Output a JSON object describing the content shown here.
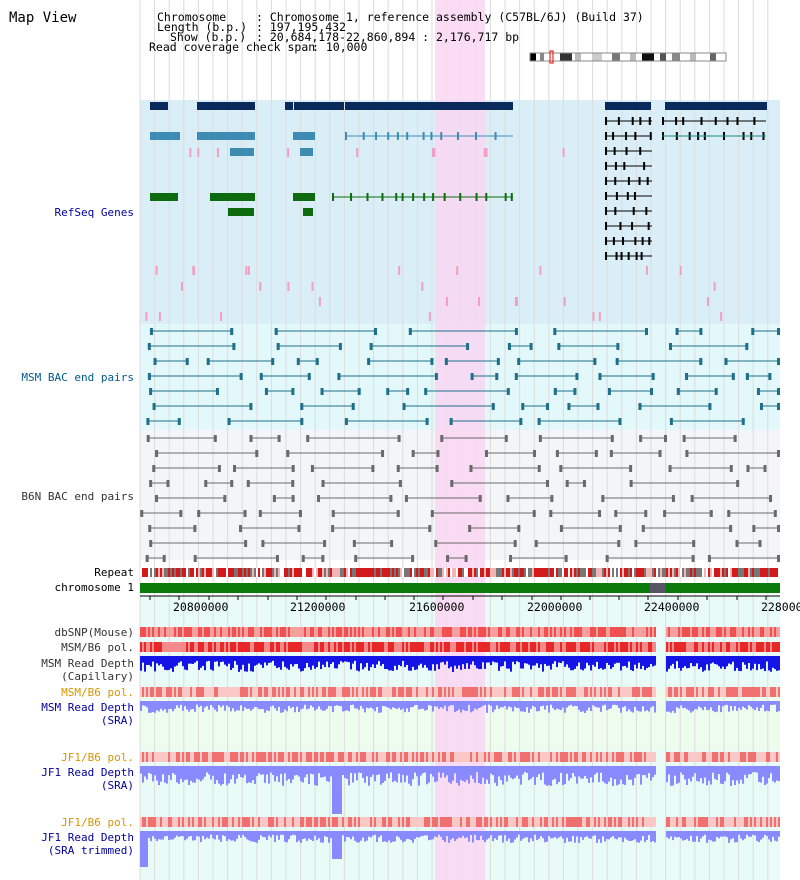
{
  "page_title": "Map View",
  "header": {
    "chromosome_key": "Chromosome",
    "chromosome_value": ": Chromosome 1, reference assembly (C57BL/6J) (Build 37)",
    "length_key": "Length (b.p.)",
    "length_value": ": 197,195,432",
    "show_key": "Show (b.p.)",
    "show_value": ": 20,684,178-22,860,894 : 2,176,717 bp",
    "coverage_key": "Read coverage check span",
    "coverage_value": ": 10,000"
  },
  "tracks": {
    "refseq": "RefSeq Genes",
    "msm_bac": "MSM BAC end pairs",
    "b6n_bac": "B6N BAC end pairs",
    "repeat": "Repeat",
    "chromosome": "chromosome 1",
    "dbsnp": "dbSNP(Mouse)",
    "msm_b6_pol_1": "MSM/B6 pol.",
    "msm_read_depth_cap_1": "MSM Read Depth",
    "msm_read_depth_cap_2": "(Capillary)",
    "msm_b6_pol_2": "MSM/B6 pol.",
    "msm_read_depth_sra_1": "MSM Read Depth",
    "msm_read_depth_sra_2": "(SRA)",
    "jf1_b6_pol_1": "JF1/B6 pol.",
    "jf1_read_depth_sra_1": "JF1 Read Depth",
    "jf1_read_depth_sra_2": "(SRA)",
    "jf1_b6_pol_2": "JF1/B6 pol.",
    "jf1_read_depth_trim_1": "JF1 Read Depth",
    "jf1_read_depth_trim_2": "(SRA trimmed)"
  },
  "axis_ticks": [
    "20800000",
    "21200000",
    "21600000",
    "22000000",
    "22400000",
    "228000"
  ],
  "colors": {
    "refseq_bg": "#daeef8",
    "msm_bg": "#e2f8fa",
    "b6n_bg": "#f4f5f8",
    "highlight": "#f9d6f3",
    "gene_dark": "#0a2a5c",
    "gene_mid": "#3e8cb4",
    "gene_green": "#0e6a0e",
    "chrom_green": "#0a7a0a",
    "depth_blue": "#1414e6",
    "depth_light": "#8a8aff"
  }
}
